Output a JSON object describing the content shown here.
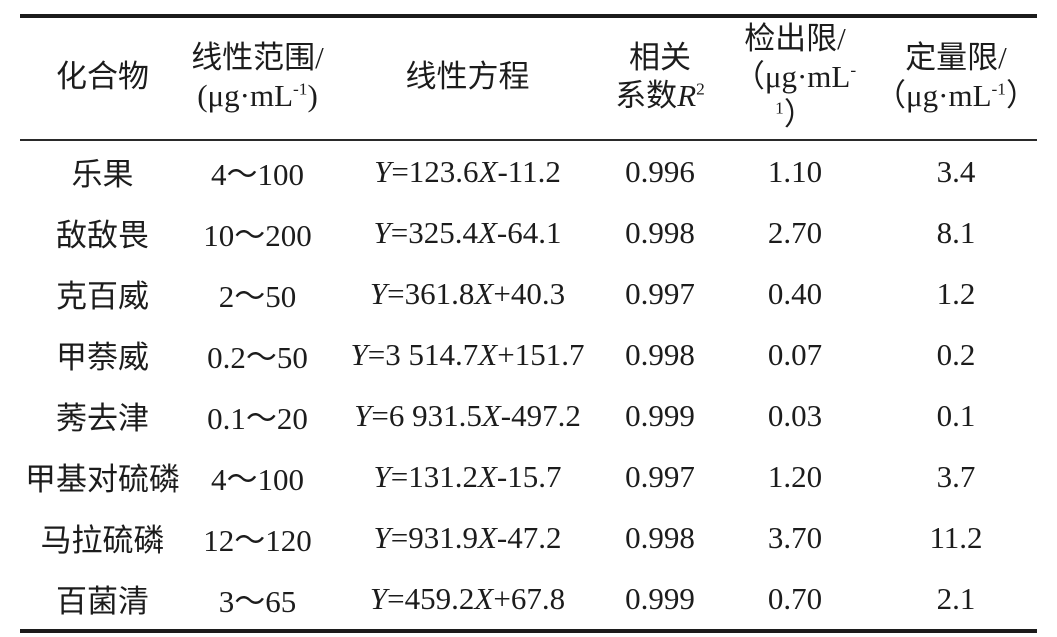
{
  "table": {
    "rule_color": "#1c1c1c",
    "header": {
      "compound": {
        "line1": "化合物"
      },
      "range": {
        "line1": "线性范围/",
        "unit_pre": "(μg·mL",
        "unit_sup": "-1",
        "unit_post": ")"
      },
      "equation": {
        "line1": "线性方程"
      },
      "r2": {
        "line1": "相关",
        "line2_prefix": "系数",
        "symbol": "R",
        "symbol_sup": "2"
      },
      "lod": {
        "line1": "检出限/",
        "unit_pre": "（μg·mL",
        "unit_sup": "-1",
        "unit_post": "）"
      },
      "loq": {
        "line1": "定量限/",
        "unit_pre": "（μg·mL",
        "unit_sup": "-1",
        "unit_post": "）"
      }
    },
    "rows": [
      {
        "compound": "乐果",
        "range": "4～100",
        "equation": "Y=123.6X-11.2",
        "r2": "0.996",
        "lod": "1.10",
        "loq": "3.4"
      },
      {
        "compound": "敌敌畏",
        "range": "10～200",
        "equation": "Y=325.4X-64.1",
        "r2": "0.998",
        "lod": "2.70",
        "loq": "8.1"
      },
      {
        "compound": "克百威",
        "range": "2～50",
        "equation": "Y=361.8X+40.3",
        "r2": "0.997",
        "lod": "0.40",
        "loq": "1.2"
      },
      {
        "compound": "甲萘威",
        "range": "0.2～50",
        "equation": "Y=3 514.7X+151.7",
        "r2": "0.998",
        "lod": "0.07",
        "loq": "0.2"
      },
      {
        "compound": "莠去津",
        "range": "0.1～20",
        "equation": "Y=6 931.5X-497.2",
        "r2": "0.999",
        "lod": "0.03",
        "loq": "0.1"
      },
      {
        "compound": "甲基对硫磷",
        "range": "4～100",
        "equation": "Y=131.2X-15.7",
        "r2": "0.997",
        "lod": "1.20",
        "loq": "3.7"
      },
      {
        "compound": "马拉硫磷",
        "range": "12～120",
        "equation": "Y=931.9X-47.2",
        "r2": "0.998",
        "lod": "3.70",
        "loq": "11.2"
      },
      {
        "compound": "百菌清",
        "range": "3～65",
        "equation": "Y=459.2X+67.8",
        "r2": "0.999",
        "lod": "0.70",
        "loq": "2.1"
      }
    ]
  }
}
